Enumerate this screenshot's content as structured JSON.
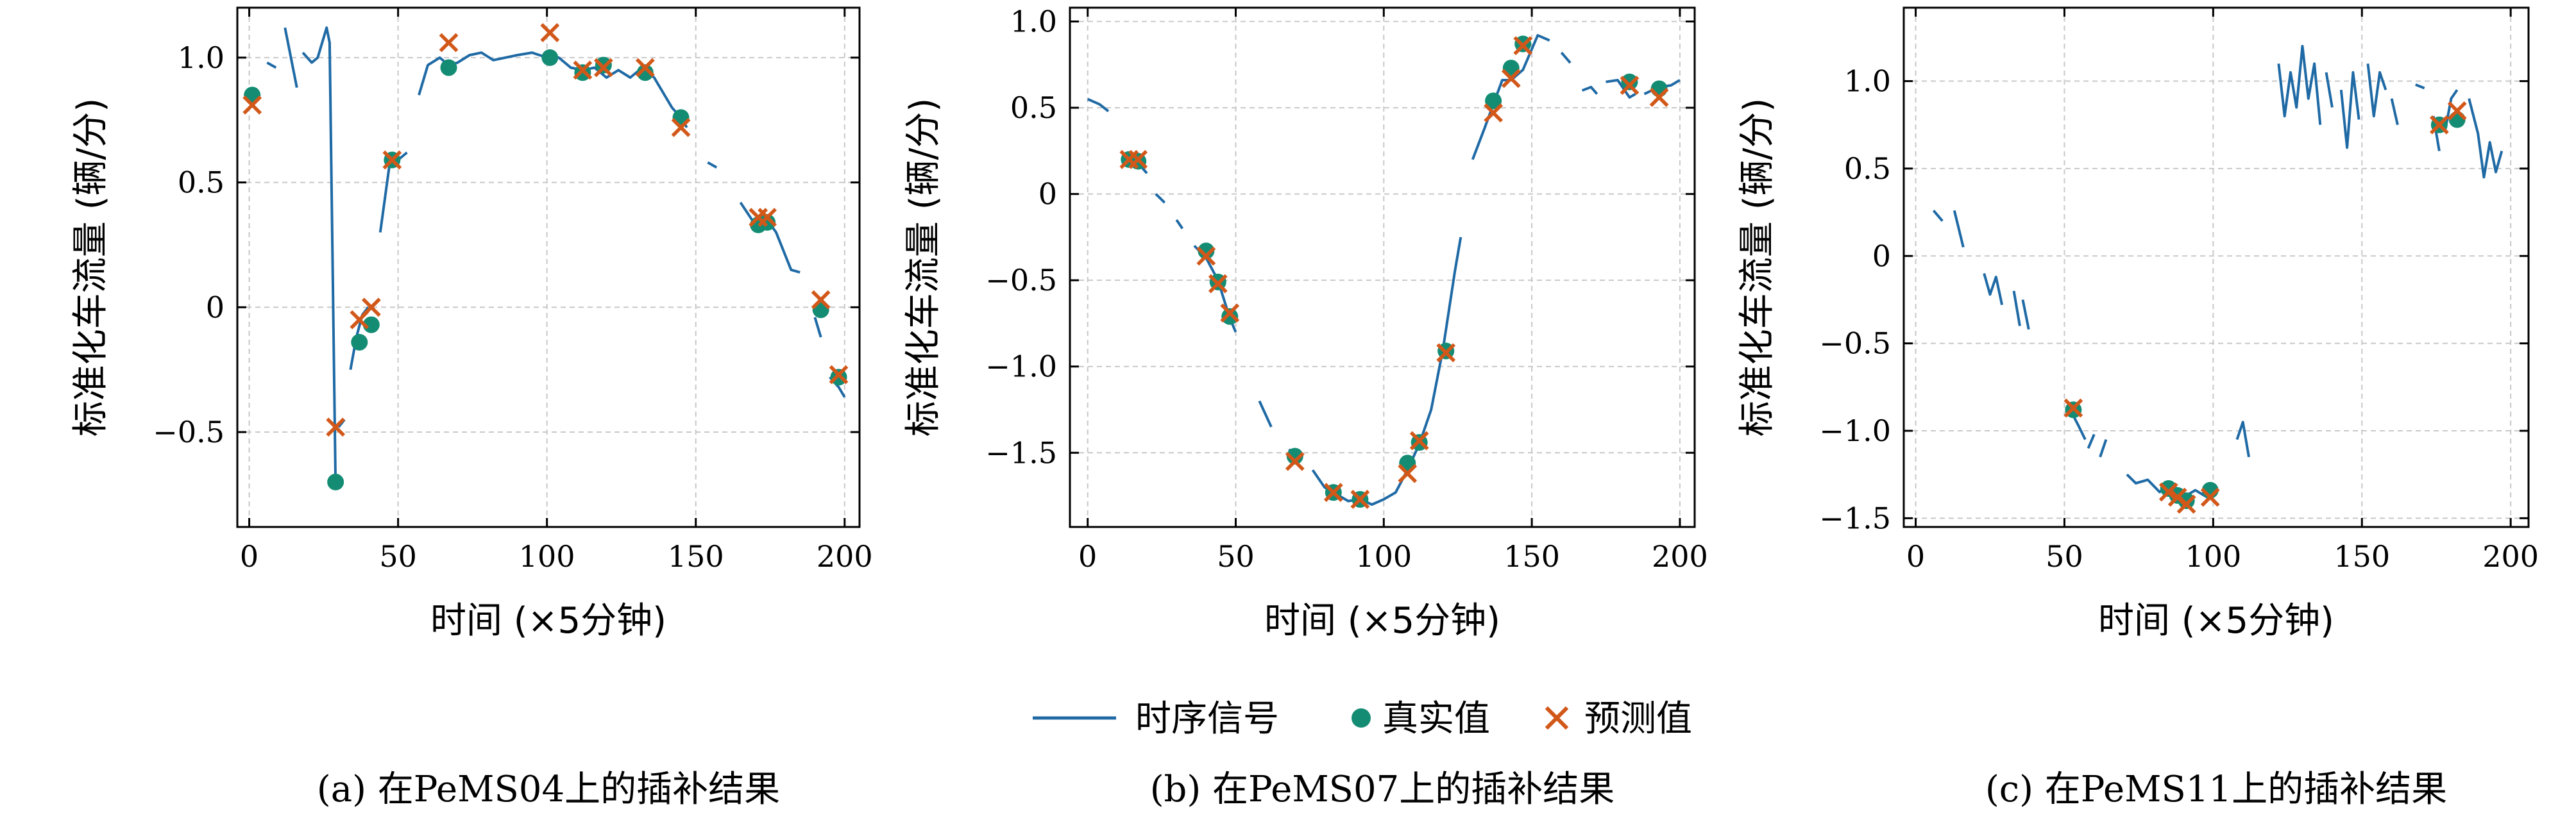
{
  "legend": {
    "signal": "时序信号",
    "true": "真实值",
    "pred": "预测值"
  },
  "colors": {
    "signal": "#1f6aa5",
    "true": "#138c73",
    "pred": "#d2581a"
  },
  "chart_data": [
    {
      "type": "line",
      "caption": "(a) 在PeMS04上的插补结果",
      "xlabel": "时间 (×5分钟)",
      "ylabel": "标准化车流量 (辆/分)",
      "xlim": [
        -4,
        205
      ],
      "ylim": [
        -0.88,
        1.2
      ],
      "xticks": [
        0,
        50,
        100,
        150,
        200
      ],
      "yticks": [
        -0.5,
        0,
        0.5,
        1.0
      ],
      "yticklabels": [
        "−0.5",
        "0",
        "0.5",
        "1.0"
      ],
      "grid": true,
      "segments": [
        [
          [
            0,
            0.88
          ],
          [
            2,
            0.84
          ]
        ],
        [
          [
            6,
            0.98
          ],
          [
            9,
            0.96
          ]
        ],
        [
          [
            12,
            1.12
          ],
          [
            16,
            0.88
          ]
        ],
        [
          [
            18,
            1.02
          ],
          [
            21,
            0.98
          ],
          [
            23,
            1.0
          ],
          [
            26,
            1.12
          ],
          [
            27,
            1.06
          ],
          [
            29,
            -0.72
          ]
        ],
        [
          [
            30,
            -0.48
          ],
          [
            32,
            -0.45
          ]
        ],
        [
          [
            34,
            -0.25
          ],
          [
            36,
            -0.12
          ],
          [
            38,
            -0.03
          ],
          [
            40,
            0.0
          ]
        ],
        [
          [
            44,
            0.3
          ],
          [
            47,
            0.56
          ],
          [
            50,
            0.59
          ],
          [
            53,
            0.62
          ]
        ],
        [
          [
            57,
            0.85
          ],
          [
            60,
            0.97
          ],
          [
            64,
            1.0
          ],
          [
            67,
            0.97
          ],
          [
            70,
            0.98
          ],
          [
            74,
            1.01
          ],
          [
            78,
            1.02
          ],
          [
            82,
            0.99
          ],
          [
            86,
            1.0
          ],
          [
            90,
            1.01
          ],
          [
            95,
            1.02
          ],
          [
            100,
            1.0
          ],
          [
            104,
            1.0
          ],
          [
            108,
            0.96
          ],
          [
            112,
            0.95
          ],
          [
            116,
            0.96
          ],
          [
            120,
            0.92
          ],
          [
            124,
            0.95
          ],
          [
            128,
            0.92
          ],
          [
            132,
            0.96
          ],
          [
            136,
            0.92
          ],
          [
            139,
            0.86
          ],
          [
            142,
            0.8
          ],
          [
            145,
            0.76
          ],
          [
            147,
            0.72
          ]
        ],
        [
          [
            154,
            0.58
          ],
          [
            157,
            0.56
          ]
        ],
        [
          [
            165,
            0.42
          ],
          [
            170,
            0.33
          ],
          [
            174,
            0.35
          ],
          [
            177,
            0.3
          ],
          [
            182,
            0.15
          ],
          [
            185,
            0.14
          ]
        ],
        [
          [
            190,
            -0.04
          ],
          [
            192,
            -0.12
          ]
        ],
        [
          [
            195,
            -0.28
          ],
          [
            198,
            -0.32
          ],
          [
            200,
            -0.36
          ]
        ]
      ],
      "true_points": [
        [
          1,
          0.85
        ],
        [
          29,
          -0.7
        ],
        [
          37,
          -0.14
        ],
        [
          41,
          -0.07
        ],
        [
          48,
          0.59
        ],
        [
          67,
          0.96
        ],
        [
          101,
          1.0
        ],
        [
          112,
          0.94
        ],
        [
          119,
          0.97
        ],
        [
          133,
          0.94
        ],
        [
          145,
          0.76
        ],
        [
          171,
          0.33
        ],
        [
          174,
          0.34
        ],
        [
          192,
          -0.01
        ],
        [
          198,
          -0.28
        ]
      ],
      "pred_points": [
        [
          1,
          0.81
        ],
        [
          29,
          -0.48
        ],
        [
          37,
          -0.05
        ],
        [
          41,
          0.0
        ],
        [
          48,
          0.59
        ],
        [
          67,
          1.06
        ],
        [
          101,
          1.1
        ],
        [
          112,
          0.95
        ],
        [
          119,
          0.96
        ],
        [
          133,
          0.96
        ],
        [
          145,
          0.72
        ],
        [
          171,
          0.36
        ],
        [
          174,
          0.36
        ],
        [
          192,
          0.03
        ],
        [
          198,
          -0.27
        ]
      ]
    },
    {
      "type": "line",
      "caption": "(b) 在PeMS07上的插补结果",
      "xlabel": "时间 (×5分钟)",
      "ylabel": "标准化车流量 (辆/分)",
      "xlim": [
        -6,
        205
      ],
      "ylim": [
        -1.93,
        1.08
      ],
      "xticks": [
        0,
        50,
        100,
        150,
        200
      ],
      "yticks": [
        -1.5,
        -1.0,
        -0.5,
        0,
        0.5,
        1.0
      ],
      "yticklabels": [
        "−1.5",
        "−1.0",
        "−0.5",
        "0",
        "0.5",
        "1.0"
      ],
      "grid": true,
      "segments": [
        [
          [
            0,
            0.55
          ],
          [
            4,
            0.52
          ],
          [
            7,
            0.48
          ]
        ],
        [
          [
            13,
            0.23
          ],
          [
            17,
            0.18
          ],
          [
            20,
            0.12
          ]
        ],
        [
          [
            23,
            0.0
          ],
          [
            26,
            -0.05
          ]
        ],
        [
          [
            30,
            -0.15
          ],
          [
            32,
            -0.2
          ]
        ],
        [
          [
            36,
            -0.3
          ],
          [
            40,
            -0.37
          ],
          [
            44,
            -0.5
          ],
          [
            48,
            -0.72
          ],
          [
            50,
            -0.8
          ]
        ],
        [
          [
            58,
            -1.2
          ],
          [
            62,
            -1.35
          ]
        ],
        [
          [
            68,
            -1.48
          ],
          [
            72,
            -1.55
          ]
        ],
        [
          [
            76,
            -1.6
          ],
          [
            80,
            -1.7
          ],
          [
            84,
            -1.74
          ],
          [
            88,
            -1.78
          ],
          [
            92,
            -1.77
          ],
          [
            96,
            -1.8
          ],
          [
            100,
            -1.77
          ],
          [
            104,
            -1.73
          ],
          [
            108,
            -1.6
          ],
          [
            112,
            -1.45
          ],
          [
            116,
            -1.25
          ],
          [
            120,
            -0.9
          ],
          [
            124,
            -0.45
          ],
          [
            126,
            -0.25
          ]
        ],
        [
          [
            130,
            0.2
          ],
          [
            134,
            0.38
          ],
          [
            137,
            0.52
          ],
          [
            140,
            0.66
          ],
          [
            143,
            0.66
          ],
          [
            147,
            0.72
          ],
          [
            152,
            0.92
          ],
          [
            156,
            0.89
          ]
        ],
        [
          [
            160,
            0.82
          ],
          [
            163,
            0.76
          ]
        ],
        [
          [
            167,
            0.6
          ],
          [
            170,
            0.62
          ],
          [
            172,
            0.58
          ]
        ],
        [
          [
            175,
            0.65
          ],
          [
            179,
            0.66
          ],
          [
            183,
            0.56
          ],
          [
            185,
            0.58
          ]
        ],
        [
          [
            188,
            0.58
          ],
          [
            193,
            0.62
          ],
          [
            197,
            0.63
          ],
          [
            200,
            0.66
          ]
        ]
      ],
      "true_points": [
        [
          14,
          0.2
        ],
        [
          17,
          0.19
        ],
        [
          40,
          -0.33
        ],
        [
          44,
          -0.51
        ],
        [
          48,
          -0.71
        ],
        [
          70,
          -1.52
        ],
        [
          83,
          -1.73
        ],
        [
          92,
          -1.77
        ],
        [
          108,
          -1.56
        ],
        [
          112,
          -1.44
        ],
        [
          121,
          -0.91
        ],
        [
          137,
          0.54
        ],
        [
          143,
          0.73
        ],
        [
          147,
          0.87
        ],
        [
          183,
          0.65
        ],
        [
          193,
          0.61
        ]
      ],
      "pred_points": [
        [
          14,
          0.2
        ],
        [
          17,
          0.2
        ],
        [
          40,
          -0.36
        ],
        [
          44,
          -0.52
        ],
        [
          48,
          -0.69
        ],
        [
          70,
          -1.55
        ],
        [
          83,
          -1.73
        ],
        [
          92,
          -1.77
        ],
        [
          108,
          -1.62
        ],
        [
          112,
          -1.43
        ],
        [
          121,
          -0.92
        ],
        [
          137,
          0.47
        ],
        [
          143,
          0.67
        ],
        [
          147,
          0.86
        ],
        [
          183,
          0.63
        ],
        [
          193,
          0.56
        ]
      ]
    },
    {
      "type": "line",
      "caption": "(c) 在PeMS11上的插补结果",
      "xlabel": "时间 (×5分钟)",
      "ylabel": "标准化车流量 (辆/分)",
      "xlim": [
        -4,
        206
      ],
      "ylim": [
        -1.55,
        1.42
      ],
      "xticks": [
        0,
        50,
        100,
        150,
        200
      ],
      "yticks": [
        -1.5,
        -1.0,
        -0.5,
        0,
        0.5,
        1.0
      ],
      "yticklabels": [
        "−1.5",
        "−1.0",
        "−0.5",
        "0",
        "0.5",
        "1.0"
      ],
      "grid": true,
      "segments": [
        [
          [
            6,
            0.26
          ],
          [
            9,
            0.2
          ]
        ],
        [
          [
            13,
            0.26
          ],
          [
            16,
            0.05
          ]
        ],
        [
          [
            23,
            -0.1
          ],
          [
            25,
            -0.22
          ],
          [
            27,
            -0.12
          ],
          [
            29,
            -0.28
          ]
        ],
        [
          [
            33,
            -0.2
          ],
          [
            35,
            -0.4
          ]
        ],
        [
          [
            36,
            -0.25
          ],
          [
            38,
            -0.42
          ]
        ],
        [
          [
            52,
            -0.88
          ],
          [
            55,
            -0.98
          ],
          [
            57,
            -1.05
          ]
        ],
        [
          [
            58,
            -1.1
          ],
          [
            60,
            -1.02
          ]
        ],
        [
          [
            62,
            -1.15
          ],
          [
            64,
            -1.05
          ]
        ],
        [
          [
            71,
            -1.25
          ],
          [
            74,
            -1.3
          ],
          [
            78,
            -1.28
          ],
          [
            82,
            -1.35
          ],
          [
            86,
            -1.3
          ],
          [
            90,
            -1.38
          ],
          [
            94,
            -1.34
          ],
          [
            98,
            -1.38
          ],
          [
            101,
            -1.33
          ]
        ],
        [
          [
            108,
            -1.05
          ],
          [
            110,
            -0.95
          ],
          [
            112,
            -1.15
          ]
        ],
        [
          [
            122,
            1.1
          ],
          [
            124,
            0.8
          ],
          [
            126,
            1.05
          ],
          [
            128,
            0.85
          ],
          [
            130,
            1.2
          ],
          [
            132,
            0.9
          ],
          [
            134,
            1.1
          ],
          [
            136,
            0.75
          ]
        ],
        [
          [
            138,
            1.05
          ],
          [
            140,
            0.85
          ]
        ],
        [
          [
            143,
            0.95
          ],
          [
            145,
            0.62
          ],
          [
            147,
            1.05
          ],
          [
            149,
            0.78
          ]
        ],
        [
          [
            152,
            1.1
          ],
          [
            154,
            0.8
          ],
          [
            156,
            1.05
          ],
          [
            158,
            0.95
          ]
        ],
        [
          [
            160,
            0.9
          ],
          [
            162,
            0.75
          ]
        ],
        [
          [
            168,
            0.98
          ],
          [
            171,
            0.96
          ]
        ],
        [
          [
            174,
            0.8
          ],
          [
            176,
            0.6
          ]
        ],
        [
          [
            178,
            0.72
          ],
          [
            180,
            0.9
          ],
          [
            182,
            0.95
          ]
        ],
        [
          [
            186,
            0.9
          ],
          [
            189,
            0.7
          ],
          [
            191,
            0.45
          ],
          [
            193,
            0.65
          ],
          [
            195,
            0.48
          ],
          [
            197,
            0.6
          ]
        ]
      ],
      "true_points": [
        [
          53,
          -0.88
        ],
        [
          85,
          -1.33
        ],
        [
          88,
          -1.37
        ],
        [
          91,
          -1.4
        ],
        [
          99,
          -1.34
        ],
        [
          176,
          0.75
        ],
        [
          182,
          0.78
        ]
      ],
      "pred_points": [
        [
          53,
          -0.87
        ],
        [
          85,
          -1.35
        ],
        [
          88,
          -1.38
        ],
        [
          91,
          -1.42
        ],
        [
          99,
          -1.38
        ],
        [
          176,
          0.75
        ],
        [
          182,
          0.83
        ]
      ]
    }
  ]
}
